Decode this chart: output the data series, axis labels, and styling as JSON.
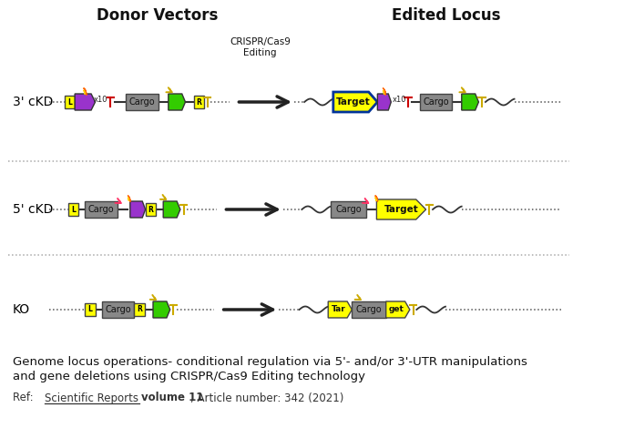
{
  "bg_color": "#ffffff",
  "title_donor": "Donor Vectors",
  "title_edited": "Edited Locus",
  "crispr_label": "CRISPR/Cas9\nEditing",
  "row_labels": [
    "3' cKD",
    "5' cKD",
    "KO"
  ],
  "caption_line1": "Genome locus operations- conditional regulation via 5'- and/or 3'-UTR manipulations",
  "caption_line2": "and gene deletions using CRISPR/Cas9 Editing technology",
  "colors": {
    "purple": "#9933CC",
    "yellow": "#FFFF00",
    "green": "#33CC00",
    "gray": "#999999",
    "orange": "#FF6600",
    "dark_yellow": "#CCAA00",
    "red": "#CC0000",
    "pink_red": "#FF3366",
    "blue_dark": "#003399",
    "line_color": "#333333"
  }
}
